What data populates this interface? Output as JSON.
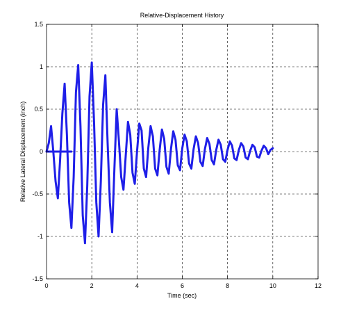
{
  "chart_data": {
    "type": "line",
    "title": "Relative-Displacement History",
    "xlabel": "Time (sec)",
    "ylabel": "Relative Lateral Displacement (inch)",
    "xlim": [
      0,
      12
    ],
    "ylim": [
      -1.5,
      1.5
    ],
    "xticks": [
      0,
      2,
      4,
      6,
      8,
      10,
      12
    ],
    "xtick_labels": [
      "0",
      "2",
      "4",
      "6",
      "8",
      "10",
      "12"
    ],
    "yticks": [
      1.5,
      1,
      0.5,
      0,
      -0.5,
      -1,
      -1.5
    ],
    "ytick_labels": [
      "1.5",
      "1",
      "0.5",
      "0",
      "-0.5",
      "-1",
      "-1.5"
    ],
    "grid": true,
    "grid_style": "dashed",
    "series_color": "#1f1fe8",
    "series": [
      {
        "x": [
          0.0,
          0.1,
          0.2,
          0.3,
          0.4,
          0.5,
          0.6,
          0.7,
          0.8,
          0.9,
          1.0,
          1.1,
          1.2,
          1.3,
          1.4,
          1.5,
          1.6,
          1.7,
          1.8,
          1.9,
          2.0,
          2.1,
          2.2,
          2.3,
          2.4,
          2.5,
          2.6,
          2.7,
          2.8,
          2.9,
          3.0,
          3.1,
          3.2,
          3.3,
          3.4,
          3.5,
          3.6,
          3.7,
          3.8,
          3.9,
          4.0,
          4.1,
          4.2,
          4.3,
          4.4,
          4.5,
          4.6,
          4.7,
          4.8,
          4.9,
          5.0,
          5.1,
          5.2,
          5.3,
          5.4,
          5.5,
          5.6,
          5.7,
          5.8,
          5.9,
          6.0,
          6.1,
          6.2,
          6.3,
          6.4,
          6.5,
          6.6,
          6.7,
          6.8,
          6.9,
          7.0,
          7.1,
          7.2,
          7.3,
          7.4,
          7.5,
          7.6,
          7.7,
          7.8,
          7.9,
          8.0,
          8.1,
          8.2,
          8.3,
          8.4,
          8.5,
          8.6,
          8.7,
          8.8,
          8.9,
          9.0,
          9.1,
          9.2,
          9.3,
          9.4,
          9.5,
          9.6,
          9.7,
          9.8,
          9.9,
          10.0
        ],
        "y": [
          0.0,
          0.1,
          0.3,
          0.0,
          -0.35,
          -0.55,
          -0.1,
          0.45,
          0.8,
          0.2,
          -0.6,
          -0.9,
          -0.3,
          0.7,
          1.02,
          0.3,
          -0.75,
          -1.08,
          -0.4,
          0.65,
          1.05,
          0.35,
          -0.6,
          -1.0,
          -0.35,
          0.55,
          0.9,
          0.1,
          -0.6,
          -0.95,
          -0.2,
          0.5,
          0.12,
          -0.3,
          -0.45,
          -0.05,
          0.35,
          0.2,
          -0.25,
          -0.38,
          0.0,
          0.33,
          0.25,
          -0.2,
          -0.3,
          0.05,
          0.3,
          0.18,
          -0.2,
          -0.28,
          0.02,
          0.26,
          0.15,
          -0.18,
          -0.26,
          0.03,
          0.24,
          0.14,
          -0.16,
          -0.22,
          0.04,
          0.2,
          0.12,
          -0.14,
          -0.2,
          0.03,
          0.18,
          0.1,
          -0.12,
          -0.17,
          0.03,
          0.16,
          0.09,
          -0.1,
          -0.15,
          0.02,
          0.14,
          0.08,
          -0.09,
          -0.12,
          0.02,
          0.12,
          0.07,
          -0.08,
          -0.1,
          0.02,
          0.1,
          0.06,
          -0.07,
          -0.09,
          0.01,
          0.08,
          0.05,
          -0.06,
          -0.07,
          0.01,
          0.07,
          0.04,
          -0.03,
          0.02,
          0.04
        ]
      },
      {
        "x": [
          0.0,
          1.1
        ],
        "y": [
          0.0,
          0.0
        ]
      }
    ]
  }
}
